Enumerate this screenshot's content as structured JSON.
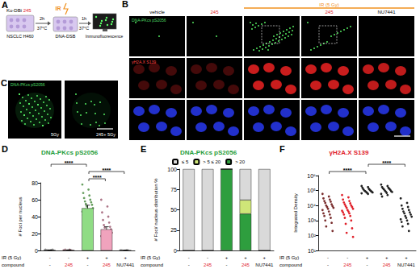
{
  "panels": {
    "A": {
      "letter": "A",
      "compound_label": "Ku-DBi",
      "compound": "245",
      "incubation": [
        "2h",
        "37°C"
      ],
      "ir": "IR",
      "damage": "DNA-DSB",
      "recovery": [
        "1h",
        "37°C"
      ],
      "cells": "NSCLC H460",
      "readout": "Immunofluorescence"
    },
    "B": {
      "letter": "B",
      "group_label": "IR (5 Gy)",
      "columns": [
        {
          "label": "vehicle",
          "ir": false
        },
        {
          "label": "245",
          "ir": false
        },
        {
          "ir": true
        },
        {
          "label": "245",
          "ir": true
        },
        {
          "label": "NU7441",
          "ir": true
        }
      ],
      "rows": [
        "DNA-PKcs pS2056",
        "γH2A.X S139"
      ]
    },
    "C": {
      "letter": "C",
      "stain": "DNA-PKcs pS2056",
      "images": [
        "5Gy",
        "245+ 5Gy"
      ]
    }
  },
  "chart_data": [
    {
      "type": "bar",
      "letter": "D",
      "title": "DNA-PKcs pS2056",
      "y_label": "# Foci per nucleus",
      "categories": [
        "-",
        "245",
        "-",
        "245",
        "NU7441"
      ],
      "category_row_label": "compound",
      "ir": {
        "label": "IR (5 Gy)",
        "values": [
          "-",
          "-",
          "+",
          "+",
          "+"
        ]
      },
      "values": [
        0.4,
        0.5,
        50,
        25,
        0.2
      ],
      "errors": [
        0.2,
        0.2,
        3.5,
        3,
        0.1
      ],
      "colors": [
        "#d9d9d9",
        "#f7c0cf",
        "#8fdc84",
        "#f0a3bd",
        "#d9d9d9"
      ],
      "points": [
        [
          0,
          0,
          1,
          0,
          0,
          1,
          0,
          0
        ],
        [
          0,
          1,
          0,
          0,
          1,
          0
        ],
        [
          78,
          72,
          68,
          65,
          62,
          60,
          58,
          57,
          55,
          54,
          52,
          50,
          48,
          46,
          44,
          42,
          40,
          37,
          34,
          30,
          25,
          22
        ],
        [
          60,
          52,
          45,
          40,
          36,
          33,
          30,
          28,
          27,
          25,
          23,
          21,
          19,
          17,
          15,
          13,
          11,
          9,
          7,
          5,
          4
        ],
        [
          0,
          0,
          0,
          0,
          0,
          0
        ]
      ],
      "ylim": [
        0,
        80
      ],
      "yticks": [
        0,
        20,
        40,
        60,
        80
      ],
      "grid": false,
      "significance": [
        {
          "between": [
            2,
            3
          ],
          "label": "****"
        },
        {
          "between": [
            2,
            4
          ],
          "label": "****"
        },
        {
          "between": [
            0,
            2
          ],
          "label": "****"
        }
      ]
    },
    {
      "type": "bar",
      "letter": "E",
      "title": "DNA-PKcs pS2056",
      "y_label": "# Foci/ nucleus distribution %",
      "categories": [
        "-",
        "245",
        "-",
        "245",
        "NU7441"
      ],
      "category_row_label": "compound",
      "ir": {
        "label": "IR (5 Gy)",
        "values": [
          "-",
          "-",
          "+",
          "+",
          "+"
        ]
      },
      "stacked": true,
      "legend": "top",
      "series": [
        {
          "name": "> 20",
          "color": "#2e9e3e",
          "values": [
            0,
            0,
            100,
            45,
            0
          ]
        },
        {
          "name": "> 5 ≤ 20",
          "color": "#cfe678",
          "values": [
            0,
            0,
            0,
            17,
            0
          ]
        },
        {
          "name": "≤ 5",
          "color": "#d9d9d9",
          "values": [
            100,
            100,
            0,
            38,
            100
          ]
        }
      ],
      "ylim": [
        0,
        100
      ],
      "yticks": [
        0,
        25,
        50,
        75,
        100
      ],
      "grid": false
    },
    {
      "type": "scatter",
      "letter": "F",
      "title": "γH2A.X S139",
      "y_label": "Integrated Density",
      "categories": [
        "-",
        "245",
        "-",
        "245",
        "NU7441"
      ],
      "category_row_label": "compound",
      "ir": {
        "label": "IR (5 Gy)",
        "values": [
          "-",
          "-",
          "+",
          "+",
          "+"
        ]
      },
      "log": "y",
      "colors": [
        "#7a2e2e",
        "#e0202a",
        "#222222",
        "#222222",
        "#222222"
      ],
      "points": [
        [
          60000,
          40000,
          30000,
          25000,
          20000,
          18000,
          15000,
          12000,
          10000,
          9000,
          8000,
          7000,
          6000,
          5000,
          4000,
          3000,
          2500,
          2000,
          1500,
          1000,
          700,
          400,
          200
        ],
        [
          50000,
          35000,
          25000,
          20000,
          16000,
          14000,
          12000,
          10000,
          9000,
          8000,
          7000,
          6000,
          5000,
          4500,
          4000,
          3500,
          3000,
          2500,
          2000,
          1500,
          1000,
          600,
          300,
          150,
          80
        ],
        [
          200000,
          170000,
          150000,
          130000,
          120000,
          110000,
          100000,
          95000,
          90000,
          85000,
          80000,
          75000,
          70000,
          65000,
          60000
        ],
        [
          250000,
          200000,
          170000,
          150000,
          140000,
          130000,
          120000,
          110000,
          100000,
          90000,
          85000,
          80000,
          70000,
          60000,
          50000,
          40000
        ],
        [
          30000,
          15000,
          10000,
          8000,
          6000,
          5000,
          4000,
          3500,
          3000,
          2500,
          2000,
          1800,
          1500,
          1200,
          1000,
          800,
          600,
          400,
          200
        ]
      ],
      "ylim": [
        10,
        1000000
      ],
      "yticks": [
        {
          "value": 10,
          "label": "10¹"
        },
        {
          "value": 100,
          "label": "10²"
        },
        {
          "value": 1000,
          "label": "10³"
        },
        {
          "value": 10000,
          "label": "10⁴"
        },
        {
          "value": 100000,
          "label": "10⁵"
        },
        {
          "value": 1000000,
          "label": "10⁶"
        }
      ],
      "grid": false,
      "significance": [
        {
          "between": [
            0,
            2
          ],
          "label": "****"
        },
        {
          "between": [
            2,
            4
          ],
          "label": "****"
        }
      ]
    }
  ]
}
